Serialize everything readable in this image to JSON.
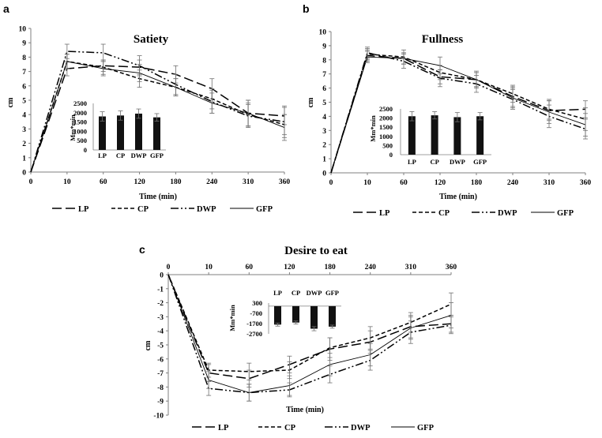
{
  "chart_data": [
    {
      "panel": "a",
      "type": "line",
      "title": "Satiety",
      "xlabel": "Time (min)",
      "ylabel": "cm",
      "x": [
        "0",
        "10",
        "60",
        "120",
        "180",
        "240",
        "310",
        "360"
      ],
      "ylim": [
        0,
        10
      ],
      "yticks": [
        "0",
        "1",
        "2",
        "3",
        "4",
        "5",
        "6",
        "7",
        "8",
        "9",
        "10"
      ],
      "series": [
        {
          "name": "LP",
          "style": "longdash",
          "values": [
            0,
            7.2,
            7.4,
            7.3,
            6.8,
            5.8,
            4.1,
            3.9
          ],
          "errors": [
            0,
            0.5,
            0.4,
            0.5,
            0.6,
            0.7,
            0.9,
            0.6
          ]
        },
        {
          "name": "CP",
          "style": "shortdash",
          "values": [
            0,
            7.7,
            7.3,
            6.5,
            5.9,
            5.1,
            4.0,
            3.3
          ],
          "errors": [
            0,
            0.5,
            0.5,
            0.6,
            0.6,
            0.7,
            0.8,
            0.7
          ]
        },
        {
          "name": "DWP",
          "style": "dashdotdot",
          "values": [
            0,
            8.4,
            8.3,
            7.4,
            6.1,
            4.9,
            3.9,
            3.5
          ],
          "errors": [
            0,
            0.5,
            0.6,
            0.7,
            0.7,
            0.8,
            0.8,
            1.1
          ]
        },
        {
          "name": "GFP",
          "style": "solid",
          "values": [
            0,
            7.7,
            7.2,
            6.9,
            5.9,
            4.8,
            4.1,
            3.1
          ],
          "errors": [
            0,
            0.5,
            0.5,
            0.6,
            0.6,
            0.7,
            0.9,
            0.9
          ]
        }
      ],
      "inset": {
        "type": "bar",
        "ylabel": "Mm*min",
        "yticks": [
          "0",
          "500",
          "1000",
          "1500",
          "2000",
          "2500"
        ],
        "ylim": [
          0,
          2500
        ],
        "categories": [
          "LP",
          "CP",
          "DWP",
          "GFP"
        ],
        "values": [
          1800,
          1850,
          1950,
          1750
        ],
        "errors": [
          250,
          250,
          250,
          200
        ]
      }
    },
    {
      "panel": "b",
      "type": "line",
      "title": "Fullness",
      "xlabel": "Time (min)",
      "ylabel": "cm",
      "x": [
        "0",
        "10",
        "60",
        "120",
        "180",
        "240",
        "310",
        "360"
      ],
      "ylim": [
        0,
        10
      ],
      "yticks": [
        "0",
        "1",
        "2",
        "3",
        "4",
        "5",
        "6",
        "7",
        "8",
        "9",
        "10"
      ],
      "series": [
        {
          "name": "LP",
          "style": "longdash",
          "values": [
            0,
            8.3,
            8.1,
            6.8,
            6.6,
            5.4,
            4.4,
            4.5
          ],
          "errors": [
            0,
            0.4,
            0.4,
            0.5,
            0.5,
            0.7,
            0.7,
            0.6
          ]
        },
        {
          "name": "CP",
          "style": "shortdash",
          "values": [
            0,
            8.4,
            8.2,
            7.1,
            6.6,
            5.6,
            4.5,
            3.8
          ],
          "errors": [
            0,
            0.4,
            0.5,
            0.5,
            0.5,
            0.6,
            0.7,
            0.8
          ]
        },
        {
          "name": "DWP",
          "style": "dashdotdot",
          "values": [
            0,
            8.5,
            7.9,
            6.7,
            6.3,
            5.2,
            4.0,
            3.1
          ],
          "errors": [
            0,
            0.4,
            0.5,
            0.6,
            0.6,
            0.7,
            0.8,
            0.7
          ]
        },
        {
          "name": "GFP",
          "style": "solid",
          "values": [
            0,
            8.2,
            8.1,
            7.6,
            6.6,
            5.3,
            4.3,
            3.4
          ],
          "errors": [
            0,
            0.4,
            0.4,
            0.6,
            0.6,
            0.7,
            0.8,
            0.8
          ]
        }
      ],
      "inset": {
        "type": "bar",
        "ylabel": "Mm*min",
        "yticks": [
          "0",
          "500",
          "1000",
          "1500",
          "2000",
          "2500"
        ],
        "ylim": [
          0,
          2500
        ],
        "categories": [
          "LP",
          "CP",
          "DWP",
          "GFP"
        ],
        "values": [
          2100,
          2150,
          2050,
          2100
        ],
        "errors": [
          250,
          200,
          250,
          200
        ]
      }
    },
    {
      "panel": "c",
      "type": "line",
      "title": "Desire to eat",
      "xlabel": "Time (min)",
      "ylabel": "cm",
      "x": [
        "0",
        "10",
        "60",
        "120",
        "180",
        "240",
        "310",
        "360"
      ],
      "ylim": [
        -10,
        0
      ],
      "yticks": [
        "0",
        "-1",
        "-2",
        "-3",
        "-4",
        "-5",
        "-6",
        "-7",
        "-8",
        "-9",
        "-10"
      ],
      "series": [
        {
          "name": "LP",
          "style": "longdash",
          "values": [
            0,
            -7.0,
            -7.4,
            -6.4,
            -5.3,
            -4.8,
            -3.7,
            -3.5
          ],
          "errors": [
            0,
            0.6,
            0.6,
            0.6,
            0.8,
            0.8,
            0.8,
            0.6
          ]
        },
        {
          "name": "CP",
          "style": "shortdash",
          "values": [
            0,
            -6.8,
            -6.9,
            -6.8,
            -5.2,
            -4.5,
            -3.4,
            -2.1
          ],
          "errors": [
            0,
            0.5,
            0.6,
            0.6,
            0.7,
            0.8,
            0.7,
            0.8
          ]
        },
        {
          "name": "DWP",
          "style": "dashdotdot",
          "values": [
            0,
            -8.1,
            -8.4,
            -8.2,
            -7.1,
            -6.1,
            -4.1,
            -3.6
          ],
          "errors": [
            0,
            0.5,
            0.6,
            0.5,
            0.6,
            0.7,
            0.8,
            0.6
          ]
        },
        {
          "name": "GFP",
          "style": "solid",
          "values": [
            0,
            -7.5,
            -8.4,
            -7.9,
            -6.4,
            -5.7,
            -3.8,
            -2.9
          ],
          "errors": [
            0,
            0.6,
            0.6,
            0.7,
            0.8,
            0.8,
            0.8,
            0.9
          ]
        }
      ],
      "inset": {
        "type": "bar",
        "ylabel": "Mm*min",
        "yticks": [
          "300",
          "-700",
          "-1700",
          "-2700"
        ],
        "ylim": [
          -2700,
          300
        ],
        "categories": [
          "LP",
          "CP",
          "DWP",
          "GFP"
        ],
        "values": [
          -1800,
          -1600,
          -2200,
          -2000
        ],
        "errors": [
          150,
          150,
          200,
          150
        ]
      }
    }
  ],
  "legend": [
    {
      "label": "LP",
      "style": "longdash"
    },
    {
      "label": "CP",
      "style": "shortdash"
    },
    {
      "label": "DWP",
      "style": "dashdotdot"
    },
    {
      "label": "GFP",
      "style": "solid"
    }
  ],
  "colors": {
    "ink": "#000000",
    "axis": "#7f7f7f",
    "error": "#707070",
    "bar": "#111111"
  }
}
